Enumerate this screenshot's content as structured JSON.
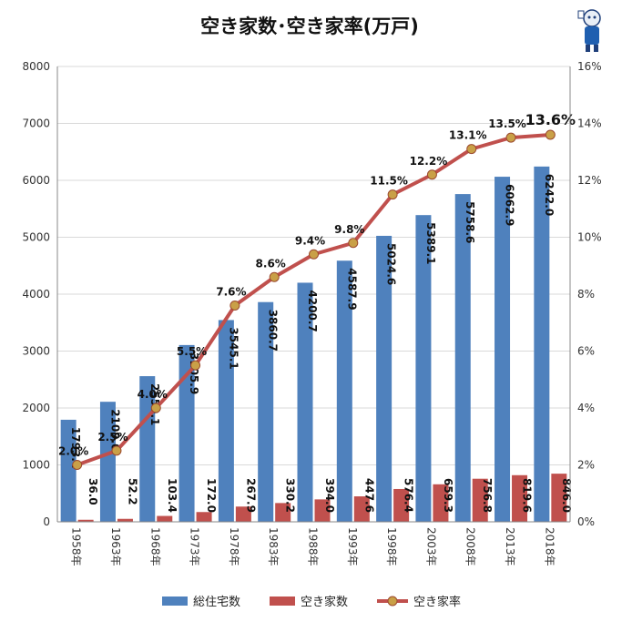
{
  "chart_data": {
    "type": "bar",
    "title": "空き家数･空き家率(万戸)",
    "categories": [
      "1958年",
      "1963年",
      "1968年",
      "1973年",
      "1978年",
      "1983年",
      "1988年",
      "1993年",
      "1998年",
      "2003年",
      "2008年",
      "2013年",
      "2018年"
    ],
    "series": [
      {
        "name": "総住宅数",
        "kind": "bar",
        "axis": "left",
        "color": "#4f81bd",
        "values": [
          1793.4,
          2109.0,
          2559.1,
          3105.9,
          3545.1,
          3860.7,
          4200.7,
          4587.9,
          5024.6,
          5389.1,
          5758.6,
          6062.9,
          6242.0
        ],
        "labels": [
          "1793.4",
          "2109.0",
          "2559.1",
          "3105.9",
          "3545.1",
          "3860.7",
          "4200.7",
          "4587.9",
          "5024.6",
          "5389.1",
          "5758.6",
          "6062.9",
          "6242.0"
        ]
      },
      {
        "name": "空き家数",
        "kind": "bar",
        "axis": "left",
        "color": "#c0504d",
        "values": [
          36.0,
          52.2,
          103.4,
          172.0,
          267.9,
          330.2,
          394.0,
          447.6,
          576.4,
          659.3,
          756.8,
          819.6,
          846.0
        ],
        "labels": [
          "36.0",
          "52.2",
          "103.4",
          "172.0",
          "267.9",
          "330.2",
          "394.0",
          "447.6",
          "576.4",
          "659.3",
          "756.8",
          "819.6",
          "846.0"
        ]
      },
      {
        "name": "空き家率",
        "kind": "line",
        "axis": "right",
        "color": "#c0504d",
        "marker_color": "#c9a047",
        "values": [
          2.0,
          2.5,
          4.0,
          5.5,
          7.6,
          8.6,
          9.4,
          9.8,
          11.5,
          12.2,
          13.1,
          13.5,
          13.6
        ],
        "labels": [
          "2.0%",
          "2.5%",
          "4.0%",
          "5.5%",
          "7.6%",
          "8.6%",
          "9.4%",
          "9.8%",
          "11.5%",
          "12.2%",
          "13.1%",
          "13.5%",
          "13.6%"
        ]
      }
    ],
    "y_left": {
      "min": 0,
      "max": 8000,
      "ticks": [
        "0",
        "1000",
        "2000",
        "3000",
        "4000",
        "5000",
        "6000",
        "7000",
        "8000"
      ]
    },
    "y_right": {
      "min": 0,
      "max": 16,
      "ticks": [
        "0%",
        "2%",
        "4%",
        "6%",
        "8%",
        "10%",
        "12%",
        "14%",
        "16%"
      ]
    },
    "grid": true,
    "legend_position": "bottom",
    "mascot_icon": "mascot-icon"
  }
}
